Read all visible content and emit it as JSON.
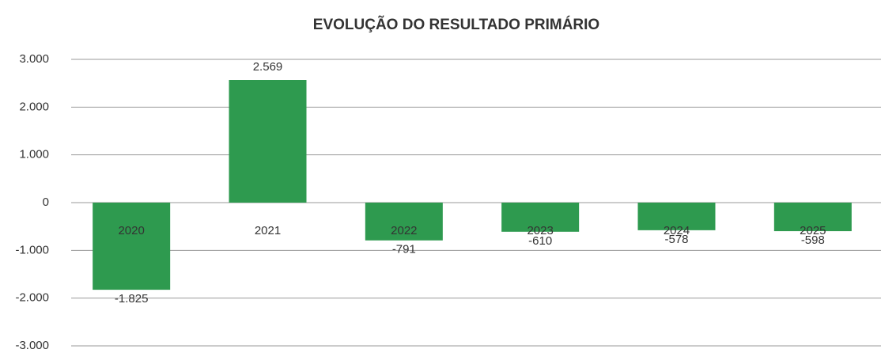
{
  "chart_data": {
    "type": "bar",
    "title": "EVOLUÇÃO DO RESULTADO PRIMÁRIO",
    "categories": [
      "2020",
      "2021",
      "2022",
      "2023",
      "2024",
      "2025"
    ],
    "values": [
      -1825,
      2569,
      -791,
      -610,
      -578,
      -598
    ],
    "value_labels": [
      "-1.825",
      "2.569",
      "-791",
      "-610",
      "-578",
      "-598"
    ],
    "color": "#2e9a4f",
    "ylim": [
      -3000,
      3000
    ],
    "yticks": [
      {
        "value": -3000,
        "label": "-3.000"
      },
      {
        "value": -2000,
        "label": "-2.000"
      },
      {
        "value": -1000,
        "label": "-1.000"
      },
      0,
      {
        "value": 1000,
        "label": "1.000"
      },
      {
        "value": 2000,
        "label": "2.000"
      },
      {
        "value": 3000,
        "label": "3.000"
      }
    ],
    "grid": true
  }
}
